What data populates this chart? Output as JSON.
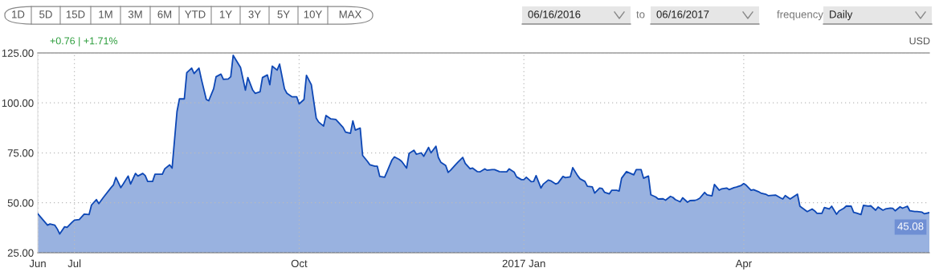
{
  "chart_data": {
    "type": "area",
    "x": [
      "2016-06-16",
      "2016-06-20",
      "2016-06-21",
      "2016-06-23",
      "2016-06-24",
      "2016-06-25",
      "2016-06-27",
      "2016-06-28",
      "2016-06-30",
      "2016-07-01",
      "2016-07-03",
      "2016-07-05",
      "2016-07-07",
      "2016-07-08",
      "2016-07-10",
      "2016-07-11",
      "2016-07-13",
      "2016-07-16",
      "2016-07-17",
      "2016-07-18",
      "2016-07-20",
      "2016-07-21",
      "2016-07-23",
      "2016-07-24",
      "2016-07-26",
      "2016-07-27",
      "2016-07-29",
      "2016-07-30",
      "2016-07-31",
      "2016-08-02",
      "2016-08-03",
      "2016-08-06",
      "2016-08-07",
      "2016-08-09",
      "2016-08-10",
      "2016-08-12",
      "2016-08-13",
      "2016-08-15",
      "2016-08-16",
      "2016-08-18",
      "2016-08-19",
      "2016-08-21",
      "2016-08-22",
      "2016-08-24",
      "2016-08-25",
      "2016-08-27",
      "2016-08-28",
      "2016-08-30",
      "2016-08-31",
      "2016-09-02",
      "2016-09-03",
      "2016-09-04",
      "2016-09-06",
      "2016-09-07",
      "2016-09-09",
      "2016-09-10",
      "2016-09-12",
      "2016-09-13",
      "2016-09-15",
      "2016-09-16",
      "2016-09-18",
      "2016-09-19",
      "2016-09-20",
      "2016-09-22",
      "2016-09-23",
      "2016-09-25",
      "2016-09-26",
      "2016-09-28",
      "2016-09-30",
      "2016-10-01",
      "2016-10-03",
      "2016-10-04",
      "2016-10-06",
      "2016-10-08",
      "2016-10-09",
      "2016-10-11",
      "2016-10-12",
      "2016-10-14",
      "2016-10-16",
      "2016-10-17",
      "2016-10-19",
      "2016-10-20",
      "2016-10-22",
      "2016-10-23",
      "2016-10-24",
      "2016-10-26",
      "2016-10-27",
      "2016-10-29",
      "2016-10-30",
      "2016-11-01",
      "2016-11-02",
      "2016-11-03",
      "2016-11-05",
      "2016-11-06",
      "2016-11-08",
      "2016-11-09",
      "2016-11-11",
      "2016-11-12",
      "2016-11-14",
      "2016-11-15",
      "2016-11-17",
      "2016-11-18",
      "2016-11-20",
      "2016-11-21",
      "2016-11-23",
      "2016-11-24",
      "2016-11-26",
      "2016-11-27",
      "2016-11-28",
      "2016-11-30",
      "2016-12-01",
      "2016-12-02",
      "2016-12-04",
      "2016-12-05",
      "2016-12-07",
      "2016-12-08",
      "2016-12-10",
      "2016-12-11",
      "2016-12-13",
      "2016-12-14",
      "2016-12-16",
      "2016-12-17",
      "2016-12-19",
      "2016-12-20",
      "2016-12-22",
      "2016-12-23",
      "2016-12-25",
      "2016-12-26",
      "2016-12-28",
      "2016-12-29",
      "2016-12-31",
      "2017-01-01",
      "2017-01-02",
      "2017-01-04",
      "2017-01-05",
      "2017-01-06",
      "2017-01-08",
      "2017-01-09",
      "2017-01-11",
      "2017-01-12",
      "2017-01-14",
      "2017-01-15",
      "2017-01-17",
      "2017-01-18",
      "2017-01-20",
      "2017-01-21",
      "2017-01-23",
      "2017-01-24",
      "2017-01-26",
      "2017-01-27",
      "2017-01-29",
      "2017-01-30",
      "2017-02-01",
      "2017-02-02",
      "2017-02-03",
      "2017-02-05",
      "2017-02-06",
      "2017-02-08",
      "2017-02-09",
      "2017-02-10",
      "2017-02-12",
      "2017-02-15",
      "2017-02-16",
      "2017-02-18",
      "2017-02-19",
      "2017-02-21",
      "2017-02-22",
      "2017-02-24",
      "2017-02-25",
      "2017-02-27",
      "2017-02-28",
      "2017-03-02",
      "2017-03-03",
      "2017-03-04",
      "2017-03-06",
      "2017-03-07",
      "2017-03-09",
      "2017-03-10",
      "2017-03-12",
      "2017-03-13",
      "2017-03-14",
      "2017-03-16",
      "2017-03-17",
      "2017-03-19",
      "2017-03-20",
      "2017-03-22",
      "2017-03-23",
      "2017-03-25",
      "2017-03-26",
      "2017-03-28",
      "2017-03-29",
      "2017-03-31",
      "2017-04-01",
      "2017-04-02",
      "2017-04-04",
      "2017-04-05",
      "2017-04-07",
      "2017-04-08",
      "2017-04-10",
      "2017-04-11",
      "2017-04-14",
      "2017-04-16",
      "2017-04-17",
      "2017-04-18",
      "2017-04-20",
      "2017-04-23",
      "2017-04-24",
      "2017-04-26",
      "2017-04-27",
      "2017-04-29",
      "2017-04-30",
      "2017-05-01",
      "2017-05-03",
      "2017-05-04",
      "2017-05-06",
      "2017-05-07",
      "2017-05-09",
      "2017-05-10",
      "2017-05-12",
      "2017-05-13",
      "2017-05-15",
      "2017-05-16",
      "2017-05-17",
      "2017-05-19",
      "2017-05-20",
      "2017-05-22",
      "2017-05-23",
      "2017-05-25",
      "2017-05-26",
      "2017-05-28",
      "2017-05-29",
      "2017-05-31",
      "2017-06-01",
      "2017-06-02",
      "2017-06-04",
      "2017-06-05",
      "2017-06-07",
      "2017-06-08",
      "2017-06-10",
      "2017-06-11",
      "2017-06-13",
      "2017-06-14",
      "2017-06-16"
    ],
    "series": [
      {
        "color": "#0d47b5",
        "values": [
          44.5,
          38.8,
          39.4,
          38.8,
          36.9,
          34.4,
          38.0,
          37.7,
          40.2,
          41.3,
          41.6,
          44.3,
          44.1,
          48.9,
          51.6,
          49.6,
          52.9,
          57.6,
          59.0,
          62.7,
          57.6,
          59.4,
          63.4,
          59.4,
          64.7,
          63.4,
          64.7,
          63.6,
          60.7,
          60.7,
          64.3,
          64.3,
          67.0,
          69.0,
          67.4,
          95.7,
          102.0,
          102.0,
          115.1,
          117.4,
          114.7,
          117.4,
          111.8,
          101.7,
          101.1,
          107.1,
          113.1,
          114.4,
          111.8,
          112.0,
          113.1,
          123.8,
          119.8,
          117.8,
          106.4,
          112.7,
          106.4,
          104.8,
          105.6,
          112.7,
          114.0,
          109.1,
          118.4,
          116.4,
          119.4,
          107.1,
          104.8,
          103.1,
          103.1,
          99.5,
          101.7,
          113.8,
          109.1,
          92.4,
          90.4,
          88.4,
          93.7,
          92.0,
          91.7,
          90.4,
          87.7,
          85.4,
          84.8,
          91.0,
          86.4,
          87.4,
          73.7,
          70.7,
          69.0,
          68.3,
          68.3,
          63.2,
          62.8,
          65.6,
          71.4,
          73.0,
          71.7,
          70.7,
          67.4,
          74.7,
          76.3,
          74.3,
          75.0,
          73.3,
          77.7,
          75.0,
          78.3,
          72.7,
          70.3,
          68.7,
          65.2,
          66.3,
          69.0,
          70.3,
          72.7,
          69.7,
          67.0,
          67.4,
          65.6,
          65.5,
          67.0,
          66.3,
          66.6,
          66.6,
          65.6,
          65.5,
          65.5,
          67.0,
          65.4,
          63.0,
          61.6,
          61.6,
          62.8,
          60.6,
          60.7,
          63.6,
          57.4,
          59.4,
          61.4,
          61.0,
          59.4,
          59.9,
          63.2,
          62.6,
          63.0,
          67.6,
          63.6,
          62.0,
          60.7,
          58.3,
          58.0,
          54.9,
          57.4,
          57.2,
          55.3,
          54.5,
          56.3,
          56.3,
          55.9,
          62.3,
          65.6,
          64.0,
          66.6,
          66.6,
          62.3,
          63.4,
          54.0,
          52.9,
          51.9,
          52.0,
          51.3,
          53.2,
          52.7,
          51.6,
          50.5,
          52.5,
          50.3,
          51.1,
          51.2,
          51.6,
          52.3,
          55.2,
          54.0,
          53.5,
          59.2,
          56.3,
          57.0,
          57.4,
          56.6,
          57.6,
          57.9,
          58.7,
          59.6,
          58.8,
          56.3,
          56.6,
          55.6,
          54.9,
          54.3,
          53.6,
          53.9,
          52.5,
          51.9,
          53.6,
          51.9,
          54.3,
          48.3,
          46.5,
          45.6,
          46.9,
          46.0,
          44.7,
          44.7,
          47.6,
          46.9,
          48.3,
          44.3,
          45.9,
          47.3,
          48.4,
          48.3,
          45.2,
          44.9,
          44.1,
          48.7,
          48.3,
          48.5,
          46.3,
          47.9,
          46.3,
          46.9,
          47.3,
          47.2,
          46.0,
          48.0,
          47.3,
          48.3,
          46.0,
          45.6,
          45.6,
          45.3,
          44.5,
          45.08
        ]
      }
    ],
    "xlim": [
      "2016-06-16",
      "2017-06-16"
    ],
    "xticks": [
      {
        "value": "2016-06-16",
        "label": "Jun"
      },
      {
        "value": "2016-07-01",
        "label": "Jul"
      },
      {
        "value": "2016-10-01",
        "label": "Oct"
      },
      {
        "value": "2017-01-01",
        "label": "2017 Jan"
      },
      {
        "value": "2017-04-01",
        "label": "Apr"
      }
    ],
    "ylim": [
      25,
      125
    ],
    "yticks": [
      {
        "value": 25,
        "label": "25.00"
      },
      {
        "value": 50,
        "label": "50.00"
      },
      {
        "value": 75,
        "label": "75.00"
      },
      {
        "value": 100,
        "label": "100.00"
      },
      {
        "value": 125,
        "label": "125.00"
      }
    ],
    "grid": true,
    "annotations": [
      "1D",
      "5D",
      "15D",
      "1M",
      "3M",
      "6M",
      "YTD",
      "1Y",
      "3Y",
      "5Y",
      "10Y",
      "MAX",
      "06/16/2016",
      "to",
      "06/16/2017",
      "frequency",
      "Daily",
      "+0.76 | +1.71%",
      "USD",
      {
        "text": "45.08",
        "x": "2017-06-16",
        "y": 45.08
      }
    ]
  }
}
